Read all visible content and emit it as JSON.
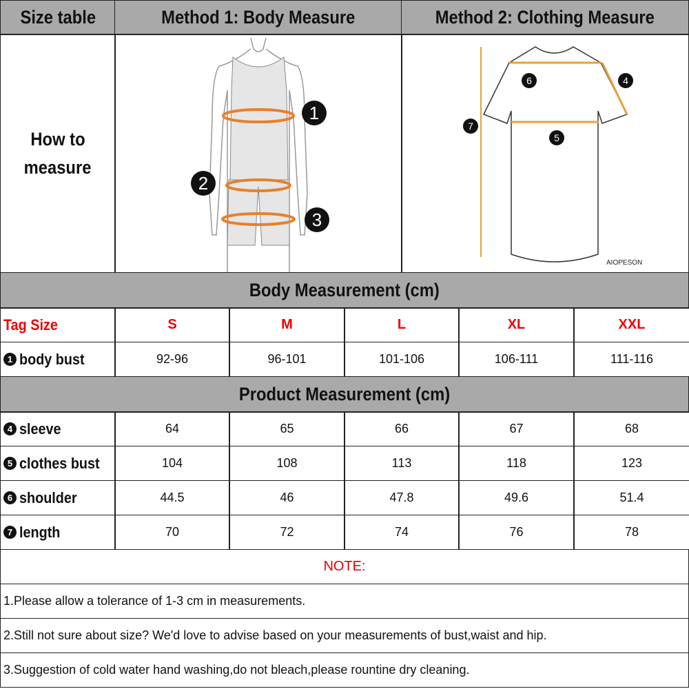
{
  "header": {
    "size_table": "Size table",
    "method1": "Method 1: Body  Measure",
    "method2": "Method 2: Clothing Measure"
  },
  "how_to": {
    "line1": "How to",
    "line2": "measure"
  },
  "figure_body": {
    "markers": [
      "1",
      "2",
      "3"
    ],
    "accent": "#e8802a"
  },
  "figure_clothing": {
    "markers": [
      "6",
      "4",
      "7",
      "5"
    ],
    "brand": "AIOPESON",
    "accent": "#e8a040"
  },
  "body_section": {
    "title": "Body Measurement (cm)"
  },
  "tag_row": {
    "label": "Tag Size",
    "sizes": [
      "S",
      "M",
      "L",
      "XL",
      "XXL"
    ]
  },
  "body_rows": [
    {
      "num": "1",
      "label": "body bust",
      "values": [
        "92-96",
        "96-101",
        "101-106",
        "106-111",
        "111-116"
      ]
    }
  ],
  "product_section": {
    "title": "Product Measurement (cm)"
  },
  "product_rows": [
    {
      "num": "4",
      "label": "sleeve",
      "values": [
        "64",
        "65",
        "66",
        "67",
        "68"
      ]
    },
    {
      "num": "5",
      "label": "clothes bust",
      "values": [
        "104",
        "108",
        "113",
        "118",
        "123"
      ]
    },
    {
      "num": "6",
      "label": "shoulder",
      "values": [
        "44.5",
        "46",
        "47.8",
        "49.6",
        "51.4"
      ]
    },
    {
      "num": "7",
      "label": "length",
      "values": [
        "70",
        "72",
        "74",
        "76",
        "78"
      ]
    }
  ],
  "note": {
    "title": "NOTE:",
    "lines": [
      "1.Please allow a tolerance of 1-3 cm in measurements.",
      "2.Still not sure about size? We'd love to advise based on your measurements of bust,waist and hip.",
      "3.Suggestion of cold water hand washing,do not bleach,please rountine dry cleaning."
    ]
  },
  "colors": {
    "header_bg": "#a9a9a9",
    "tag_red": "#e00000",
    "note_red": "#e00000"
  }
}
